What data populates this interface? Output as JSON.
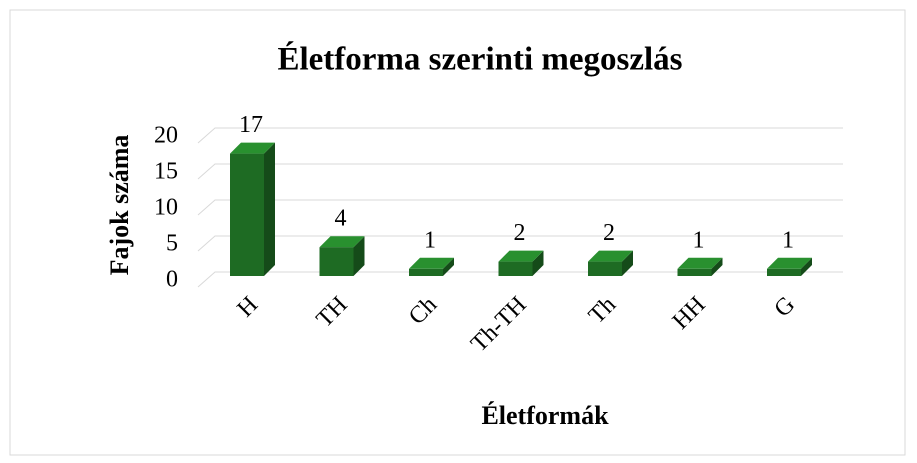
{
  "chart_data": {
    "type": "bar",
    "title": "Életforma szerinti megoszlás",
    "x_label": "Életformák",
    "y_label": "Fajok száma",
    "categories": [
      "H",
      "TH",
      "Ch",
      "Th-TH",
      "Th",
      "HH",
      "G"
    ],
    "values": [
      17,
      4,
      1,
      2,
      2,
      1,
      1
    ],
    "color": "#1e6b23",
    "ylim": [
      0,
      20
    ],
    "yticks": [
      0,
      5,
      10,
      15,
      20
    ],
    "grid": true
  }
}
